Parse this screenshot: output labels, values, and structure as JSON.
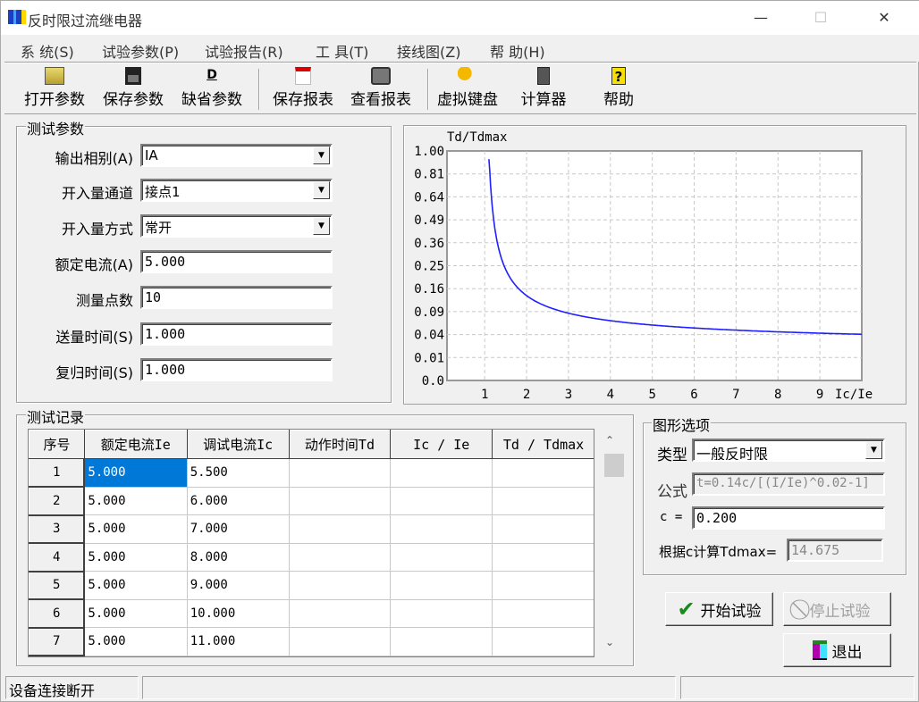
{
  "window": {
    "title": "反时限过流继电器",
    "minimize": "—",
    "maximize": "☐",
    "close": "✕"
  },
  "menu": [
    "系 统(S)",
    "试验参数(P)",
    "试验报告(R)",
    "工 具(T)",
    "接线图(Z)",
    "帮 助(H)"
  ],
  "toolbar": [
    {
      "label": "打开参数",
      "icon": "open-folder-icon"
    },
    {
      "label": "保存参数",
      "icon": "floppy-disk-icon"
    },
    {
      "label": "缺省参数",
      "icon": "default-d-icon"
    },
    {
      "label": "保存报表",
      "icon": "excel-report-icon"
    },
    {
      "label": "查看报表",
      "icon": "printer-icon"
    },
    {
      "label": "虚拟键盘",
      "icon": "key-icon"
    },
    {
      "label": "计算器",
      "icon": "calculator-icon"
    },
    {
      "label": "帮助",
      "icon": "question-icon"
    }
  ],
  "params": {
    "title": "测试参数",
    "fields": [
      {
        "label": "输出相别(A)",
        "value": "IA",
        "type": "select"
      },
      {
        "label": "开入量通道",
        "value": "接点1",
        "type": "select"
      },
      {
        "label": "开入量方式",
        "value": "常开",
        "type": "select"
      },
      {
        "label": "额定电流(A)",
        "value": "5.000",
        "type": "input"
      },
      {
        "label": "测量点数",
        "value": "10",
        "type": "input"
      },
      {
        "label": "送量时间(S)",
        "value": "1.000",
        "type": "input"
      },
      {
        "label": "复归时间(S)",
        "value": "1.000",
        "type": "input"
      }
    ]
  },
  "chart_data": {
    "type": "line",
    "ylabel": "Td/Tdmax",
    "xlabel": "Ic/Ie",
    "y_scale": "sqrt",
    "yticks": [
      "0.0",
      "0.01",
      "0.04",
      "0.09",
      "0.16",
      "0.25",
      "0.36",
      "0.49",
      "0.64",
      "0.81",
      "1.00"
    ],
    "xticks": [
      "1",
      "2",
      "3",
      "4",
      "5",
      "6",
      "7",
      "8",
      "9"
    ],
    "xlim": [
      0.1,
      10
    ],
    "ylim": [
      0,
      1
    ],
    "grid": true,
    "curve_color": "#2020ff",
    "series": [
      {
        "x": [
          1.1,
          1.2,
          1.3,
          1.5,
          1.75,
          2,
          2.5,
          3,
          4,
          5,
          6,
          7,
          8,
          9,
          10
        ],
        "y": [
          1.0,
          0.522,
          0.365,
          0.234,
          0.17,
          0.137,
          0.104,
          0.087,
          0.068,
          0.059,
          0.053,
          0.049,
          0.046,
          0.043,
          0.0405
        ]
      }
    ]
  },
  "records": {
    "title": "测试记录",
    "columns": [
      "序号",
      "额定电流Ie",
      "调试电流Ic",
      "动作时间Td",
      "Ic / Ie",
      "Td / Tdmax"
    ],
    "rows": [
      [
        "1",
        "5.000",
        "5.500",
        "",
        "",
        ""
      ],
      [
        "2",
        "5.000",
        "6.000",
        "",
        "",
        ""
      ],
      [
        "3",
        "5.000",
        "7.000",
        "",
        "",
        ""
      ],
      [
        "4",
        "5.000",
        "8.000",
        "",
        "",
        ""
      ],
      [
        "5",
        "5.000",
        "9.000",
        "",
        "",
        ""
      ],
      [
        "6",
        "5.000",
        "10.000",
        "",
        "",
        ""
      ],
      [
        "7",
        "5.000",
        "11.000",
        "",
        "",
        ""
      ]
    ],
    "selection_color": "#0078d7"
  },
  "graph_options": {
    "title": "图形选项",
    "type_label": "类型",
    "type_value": "一般反时限",
    "formula_label": "公式",
    "formula_value": "t=0.14c/[(I/Ie)^0.02-1]",
    "c_label": "c =",
    "c_value": "0.200",
    "tdmax_label": "根据c计算Tdmax=",
    "tdmax_value": "14.675"
  },
  "buttons": {
    "start": "开始试验",
    "stop": "停止试验",
    "exit": "退出"
  },
  "status": {
    "connection": "设备连接断开"
  }
}
